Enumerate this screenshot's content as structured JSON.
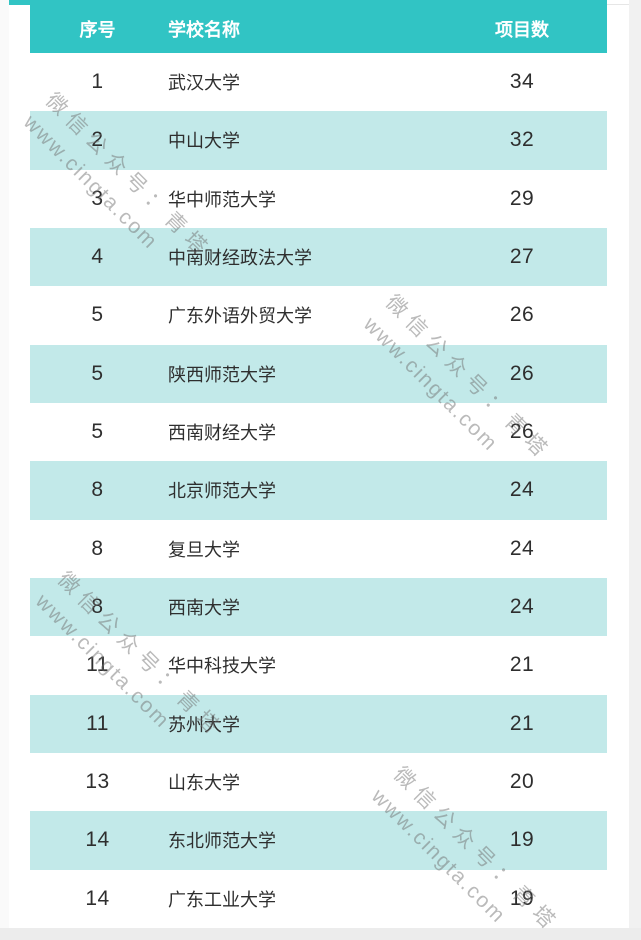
{
  "table": {
    "header": {
      "rank": "序号",
      "school": "学校名称",
      "count": "项目数"
    },
    "rows": [
      {
        "rank": "1",
        "school": "武汉大学",
        "count": "34"
      },
      {
        "rank": "2",
        "school": "中山大学",
        "count": "32"
      },
      {
        "rank": "3",
        "school": "华中师范大学",
        "count": "29"
      },
      {
        "rank": "4",
        "school": "中南财经政法大学",
        "count": "27"
      },
      {
        "rank": "5",
        "school": "广东外语外贸大学",
        "count": "26"
      },
      {
        "rank": "5",
        "school": "陕西师范大学",
        "count": "26"
      },
      {
        "rank": "5",
        "school": "西南财经大学",
        "count": "26"
      },
      {
        "rank": "8",
        "school": "北京师范大学",
        "count": "24"
      },
      {
        "rank": "8",
        "school": "复旦大学",
        "count": "24"
      },
      {
        "rank": "8",
        "school": "西南大学",
        "count": "24"
      },
      {
        "rank": "11",
        "school": "华中科技大学",
        "count": "21"
      },
      {
        "rank": "11",
        "school": "苏州大学",
        "count": "21"
      },
      {
        "rank": "13",
        "school": "山东大学",
        "count": "20"
      },
      {
        "rank": "14",
        "school": "东北师范大学",
        "count": "19"
      },
      {
        "rank": "14",
        "school": "广东工业大学",
        "count": "19"
      }
    ]
  },
  "watermark": {
    "line1": "微信公众号：青塔",
    "line2": "www.cingta.com"
  },
  "colors": {
    "header_bg": "#31c4c4",
    "alt_row_bg": "#c2e9e9",
    "header_text": "#ffffff",
    "cell_text": "#2e2e2e",
    "watermark_text": "#c4c4c4",
    "edge_matte": "#ececec"
  },
  "chart_data": {
    "type": "table",
    "title": "",
    "columns": [
      "序号",
      "学校名称",
      "项目数"
    ],
    "rows": [
      [
        1,
        "武汉大学",
        34
      ],
      [
        2,
        "中山大学",
        32
      ],
      [
        3,
        "华中师范大学",
        29
      ],
      [
        4,
        "中南财经政法大学",
        27
      ],
      [
        5,
        "广东外语外贸大学",
        26
      ],
      [
        5,
        "陕西师范大学",
        26
      ],
      [
        5,
        "西南财经大学",
        26
      ],
      [
        8,
        "北京师范大学",
        24
      ],
      [
        8,
        "复旦大学",
        24
      ],
      [
        8,
        "西南大学",
        24
      ],
      [
        11,
        "华中科技大学",
        21
      ],
      [
        11,
        "苏州大学",
        21
      ],
      [
        13,
        "山东大学",
        20
      ],
      [
        14,
        "东北师范大学",
        19
      ],
      [
        14,
        "广东工业大学",
        19
      ]
    ],
    "layout_hints": {
      "striped_rows": true,
      "header_color": "#31c4c4",
      "stripe_color": "#c2e9e9"
    }
  }
}
